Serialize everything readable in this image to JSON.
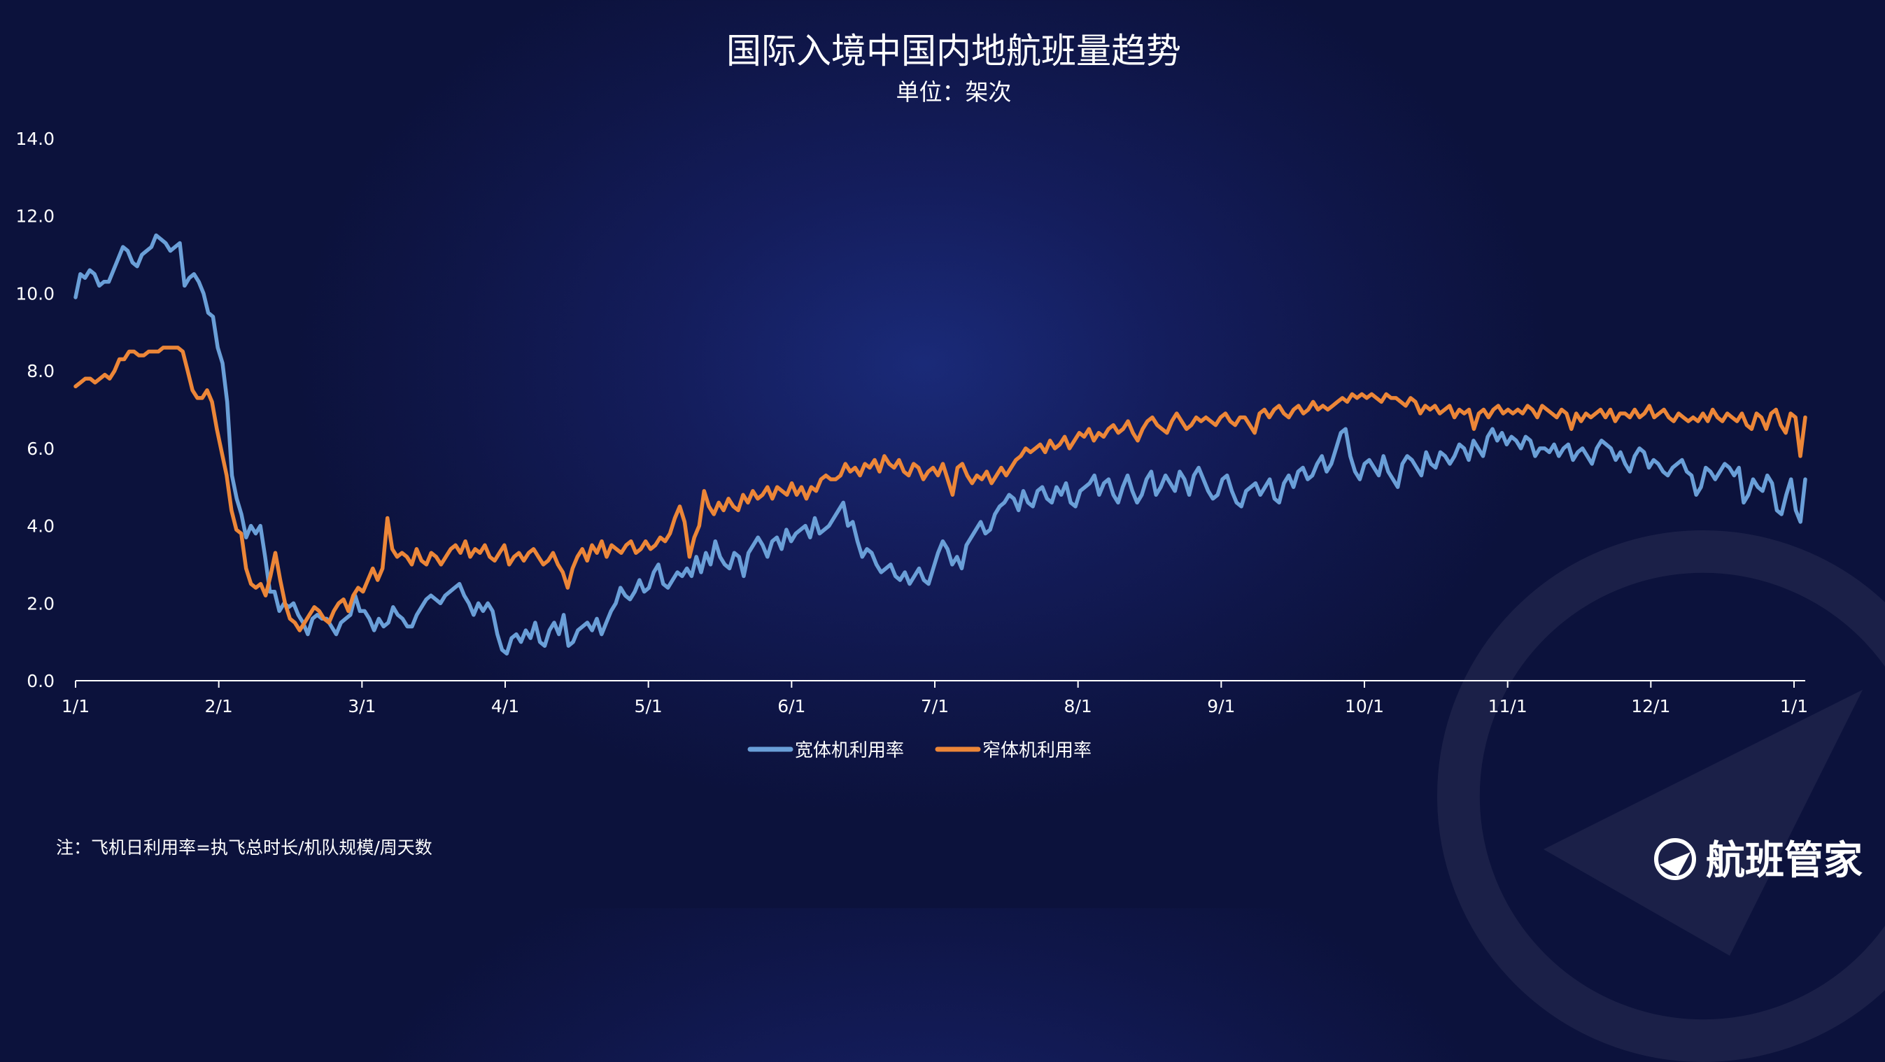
{
  "header": {
    "title": "国际入境中国内地航班量趋势",
    "subtitle": "单位：架次"
  },
  "footer": {
    "note": "注：飞机日利用率=执飞总时长/机队规模/周天数",
    "brand": "航班管家",
    "brand_icon": "plane-globe-logo-icon"
  },
  "colors": {
    "wide": "#6a9fd8",
    "narrow": "#ec8638",
    "axis": "#ffffff"
  },
  "chart_data": {
    "type": "line",
    "title": "国际入境中国内地航班量趋势",
    "subtitle": "单位：架次",
    "xlabel": "",
    "ylabel": "",
    "ylim": [
      0,
      14
    ],
    "yticks": [
      "0.0",
      "2.0",
      "4.0",
      "6.0",
      "8.0",
      "10.0",
      "12.0",
      "14.0"
    ],
    "xticks": [
      "1/1",
      "2/1",
      "3/1",
      "4/1",
      "5/1",
      "6/1",
      "7/1",
      "8/1",
      "9/1",
      "10/1",
      "11/1",
      "12/1",
      "1/1"
    ],
    "grid": false,
    "legend": "bottom-center",
    "series": [
      {
        "name": "宽体机利用率",
        "values": [
          9.9,
          10.5,
          10.4,
          10.6,
          10.5,
          10.2,
          10.3,
          10.3,
          10.6,
          10.9,
          11.2,
          11.1,
          10.8,
          10.7,
          11.0,
          11.1,
          11.2,
          11.5,
          11.4,
          11.3,
          11.1,
          11.2,
          11.3,
          10.2,
          10.4,
          10.5,
          10.3,
          10.0,
          9.5,
          9.4,
          8.6,
          8.2,
          7.2,
          5.3,
          4.7,
          4.3,
          3.7,
          4.0,
          3.8,
          4.0,
          3.2,
          2.3,
          2.3,
          1.8,
          2.0,
          1.9,
          2.0,
          1.7,
          1.5,
          1.2,
          1.6,
          1.7,
          1.6,
          1.6,
          1.4,
          1.2,
          1.5,
          1.6,
          1.7,
          2.2,
          1.8,
          1.8,
          1.6,
          1.3,
          1.6,
          1.4,
          1.5,
          1.9,
          1.7,
          1.6,
          1.4,
          1.4,
          1.7,
          1.9,
          2.1,
          2.2,
          2.1,
          2.0,
          2.2,
          2.3,
          2.4,
          2.5,
          2.2,
          2.0,
          1.7,
          2.0,
          1.8,
          2.0,
          1.8,
          1.2,
          0.8,
          0.7,
          1.1,
          1.2,
          1.0,
          1.3,
          1.1,
          1.5,
          1.0,
          0.9,
          1.3,
          1.5,
          1.2,
          1.7,
          0.9,
          1.0,
          1.3,
          1.4,
          1.5,
          1.3,
          1.6,
          1.2,
          1.5,
          1.8,
          2.0,
          2.4,
          2.2,
          2.1,
          2.3,
          2.6,
          2.3,
          2.4,
          2.8,
          3.0,
          2.5,
          2.4,
          2.6,
          2.8,
          2.7,
          2.9,
          2.7,
          3.2,
          2.8,
          3.3,
          3.0,
          3.6,
          3.2,
          3.0,
          2.9,
          3.3,
          3.2,
          2.7,
          3.3,
          3.5,
          3.7,
          3.5,
          3.2,
          3.6,
          3.7,
          3.4,
          3.9,
          3.6,
          3.8,
          3.9,
          4.0,
          3.7,
          4.2,
          3.8,
          3.9,
          4.0,
          4.2,
          4.4,
          4.6,
          4.0,
          4.1,
          3.6,
          3.2,
          3.4,
          3.3,
          3.0,
          2.8,
          2.9,
          3.0,
          2.7,
          2.6,
          2.8,
          2.5,
          2.7,
          2.9,
          2.6,
          2.5,
          2.9,
          3.3,
          3.6,
          3.4,
          3.0,
          3.2,
          2.9,
          3.5,
          3.7,
          3.9,
          4.1,
          3.8,
          3.9,
          4.3,
          4.5,
          4.6,
          4.8,
          4.7,
          4.4,
          4.9,
          4.6,
          4.5,
          4.9,
          5.0,
          4.7,
          4.6,
          5.0,
          4.8,
          5.1,
          4.6,
          4.5,
          4.9,
          5.0,
          5.1,
          5.3,
          4.8,
          5.1,
          5.2,
          4.8,
          4.6,
          5.0,
          5.3,
          4.9,
          4.6,
          4.8,
          5.2,
          5.4,
          4.8,
          5.0,
          5.3,
          5.1,
          4.9,
          5.4,
          5.2,
          4.8,
          5.3,
          5.5,
          5.2,
          4.9,
          4.7,
          4.8,
          5.2,
          5.3,
          4.9,
          4.6,
          4.5,
          4.9,
          5.0,
          5.1,
          4.8,
          5.0,
          5.2,
          4.7,
          4.6,
          5.1,
          5.3,
          5.0,
          5.4,
          5.5,
          5.2,
          5.3,
          5.6,
          5.8,
          5.4,
          5.6,
          6.0,
          6.4,
          6.5,
          5.8,
          5.4,
          5.2,
          5.6,
          5.7,
          5.5,
          5.3,
          5.8,
          5.4,
          5.2,
          5.0,
          5.6,
          5.8,
          5.7,
          5.5,
          5.3,
          5.9,
          5.6,
          5.5,
          5.9,
          5.8,
          5.6,
          5.8,
          6.1,
          6.0,
          5.7,
          6.2,
          6.0,
          5.8,
          6.3,
          6.5,
          6.2,
          6.4,
          6.1,
          6.3,
          6.2,
          6.0,
          6.3,
          6.2,
          5.8,
          6.0,
          6.0,
          5.9,
          6.1,
          5.8,
          6.0,
          6.1,
          5.7,
          5.9,
          6.0,
          5.8,
          5.6,
          6.0,
          6.2,
          6.1,
          6.0,
          5.7,
          5.9,
          5.6,
          5.4,
          5.8,
          6.0,
          5.9,
          5.5,
          5.7,
          5.6,
          5.4,
          5.3,
          5.5,
          5.6,
          5.7,
          5.4,
          5.3,
          4.8,
          5.0,
          5.5,
          5.4,
          5.2,
          5.4,
          5.6,
          5.5,
          5.3,
          5.5,
          4.6,
          4.8,
          5.2,
          5.0,
          4.9,
          5.3,
          5.1,
          4.4,
          4.3,
          4.8,
          5.2,
          4.4,
          4.1,
          5.2
        ]
      },
      {
        "name": "窄体机利用率",
        "values": [
          7.6,
          7.7,
          7.8,
          7.8,
          7.7,
          7.8,
          7.9,
          7.8,
          8.0,
          8.3,
          8.3,
          8.5,
          8.5,
          8.4,
          8.4,
          8.5,
          8.5,
          8.5,
          8.6,
          8.6,
          8.6,
          8.6,
          8.5,
          8.0,
          7.5,
          7.3,
          7.3,
          7.5,
          7.2,
          6.5,
          5.9,
          5.3,
          4.4,
          3.9,
          3.8,
          2.9,
          2.5,
          2.4,
          2.5,
          2.2,
          2.7,
          3.3,
          2.6,
          2.0,
          1.6,
          1.5,
          1.3,
          1.5,
          1.7,
          1.9,
          1.8,
          1.6,
          1.5,
          1.8,
          2.0,
          2.1,
          1.8,
          2.2,
          2.4,
          2.3,
          2.6,
          2.9,
          2.6,
          2.9,
          4.2,
          3.4,
          3.2,
          3.3,
          3.2,
          3.0,
          3.4,
          3.1,
          3.0,
          3.3,
          3.2,
          3.0,
          3.2,
          3.4,
          3.5,
          3.3,
          3.6,
          3.2,
          3.4,
          3.3,
          3.5,
          3.2,
          3.1,
          3.3,
          3.5,
          3.0,
          3.2,
          3.3,
          3.1,
          3.3,
          3.4,
          3.2,
          3.0,
          3.1,
          3.3,
          3.0,
          2.8,
          2.4,
          2.9,
          3.2,
          3.4,
          3.1,
          3.5,
          3.3,
          3.6,
          3.2,
          3.5,
          3.4,
          3.3,
          3.5,
          3.6,
          3.3,
          3.4,
          3.6,
          3.4,
          3.5,
          3.7,
          3.6,
          3.8,
          4.2,
          4.5,
          4.1,
          3.2,
          3.7,
          4.0,
          4.9,
          4.5,
          4.3,
          4.6,
          4.4,
          4.7,
          4.5,
          4.4,
          4.8,
          4.6,
          4.9,
          4.7,
          4.8,
          5.0,
          4.7,
          5.0,
          4.9,
          4.8,
          5.1,
          4.8,
          5.0,
          4.7,
          5.0,
          4.9,
          5.2,
          5.3,
          5.2,
          5.2,
          5.3,
          5.6,
          5.4,
          5.5,
          5.3,
          5.6,
          5.5,
          5.7,
          5.4,
          5.8,
          5.6,
          5.5,
          5.7,
          5.4,
          5.3,
          5.6,
          5.5,
          5.2,
          5.4,
          5.5,
          5.3,
          5.6,
          5.2,
          4.8,
          5.5,
          5.6,
          5.3,
          5.1,
          5.3,
          5.2,
          5.4,
          5.1,
          5.3,
          5.5,
          5.3,
          5.5,
          5.7,
          5.8,
          6.0,
          5.9,
          6.0,
          6.1,
          5.9,
          6.2,
          6.0,
          6.1,
          6.3,
          6.0,
          6.2,
          6.4,
          6.3,
          6.5,
          6.2,
          6.4,
          6.3,
          6.5,
          6.6,
          6.4,
          6.5,
          6.7,
          6.4,
          6.2,
          6.5,
          6.7,
          6.8,
          6.6,
          6.5,
          6.4,
          6.7,
          6.9,
          6.7,
          6.5,
          6.6,
          6.8,
          6.7,
          6.8,
          6.7,
          6.6,
          6.8,
          6.9,
          6.7,
          6.6,
          6.8,
          6.8,
          6.6,
          6.4,
          6.9,
          7.0,
          6.8,
          7.0,
          7.1,
          6.9,
          6.8,
          7.0,
          7.1,
          6.9,
          7.0,
          7.2,
          7.0,
          7.1,
          7.0,
          7.1,
          7.2,
          7.3,
          7.2,
          7.4,
          7.3,
          7.4,
          7.3,
          7.4,
          7.3,
          7.2,
          7.4,
          7.3,
          7.3,
          7.2,
          7.1,
          7.3,
          7.2,
          6.9,
          7.1,
          7.0,
          7.1,
          6.9,
          7.0,
          7.1,
          6.8,
          7.0,
          6.9,
          7.0,
          6.5,
          6.9,
          7.0,
          6.8,
          7.0,
          7.1,
          6.9,
          7.0,
          6.9,
          7.0,
          6.9,
          7.1,
          7.0,
          6.8,
          7.1,
          7.0,
          6.9,
          6.8,
          7.0,
          6.9,
          6.5,
          6.9,
          6.7,
          6.9,
          6.8,
          6.9,
          7.0,
          6.8,
          7.0,
          6.7,
          6.9,
          6.9,
          6.8,
          7.0,
          6.8,
          6.9,
          7.1,
          6.8,
          6.9,
          7.0,
          6.8,
          6.7,
          6.9,
          6.8,
          6.7,
          6.8,
          6.7,
          6.9,
          6.7,
          7.0,
          6.8,
          6.7,
          6.9,
          6.8,
          6.7,
          6.9,
          6.6,
          6.5,
          6.9,
          6.8,
          6.5,
          6.9,
          7.0,
          6.6,
          6.4,
          6.9,
          6.8,
          5.8,
          6.8
        ]
      }
    ]
  }
}
